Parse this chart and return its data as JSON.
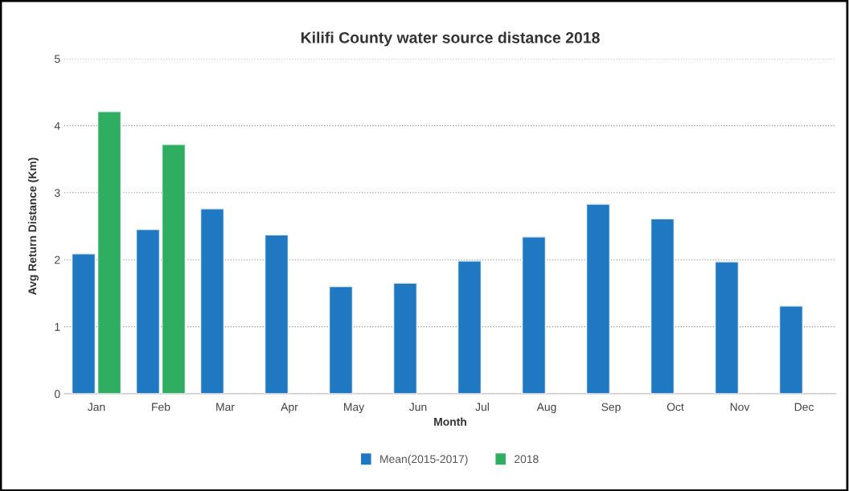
{
  "chart_data": {
    "type": "bar",
    "title": "Kilifi County water source distance 2018",
    "xlabel": "Month",
    "ylabel": "Avg Return Distance (Km)",
    "categories": [
      "Jan",
      "Feb",
      "Mar",
      "Apr",
      "May",
      "Jun",
      "Jul",
      "Aug",
      "Sep",
      "Oct",
      "Nov",
      "Dec"
    ],
    "series": [
      {
        "name": "Mean(2015-2017)",
        "color": "#1f78c1",
        "values": [
          2.09,
          2.45,
          2.76,
          2.37,
          1.6,
          1.65,
          1.98,
          2.34,
          2.83,
          2.61,
          1.97,
          1.31
        ]
      },
      {
        "name": "2018",
        "color": "#2fae62",
        "values": [
          4.21,
          3.72,
          null,
          null,
          null,
          null,
          null,
          null,
          null,
          null,
          null,
          null
        ]
      }
    ],
    "ylim": [
      0,
      5
    ],
    "yticks": [
      0,
      1,
      2,
      3,
      4,
      5
    ],
    "grid": "y",
    "legend": "bottom"
  }
}
